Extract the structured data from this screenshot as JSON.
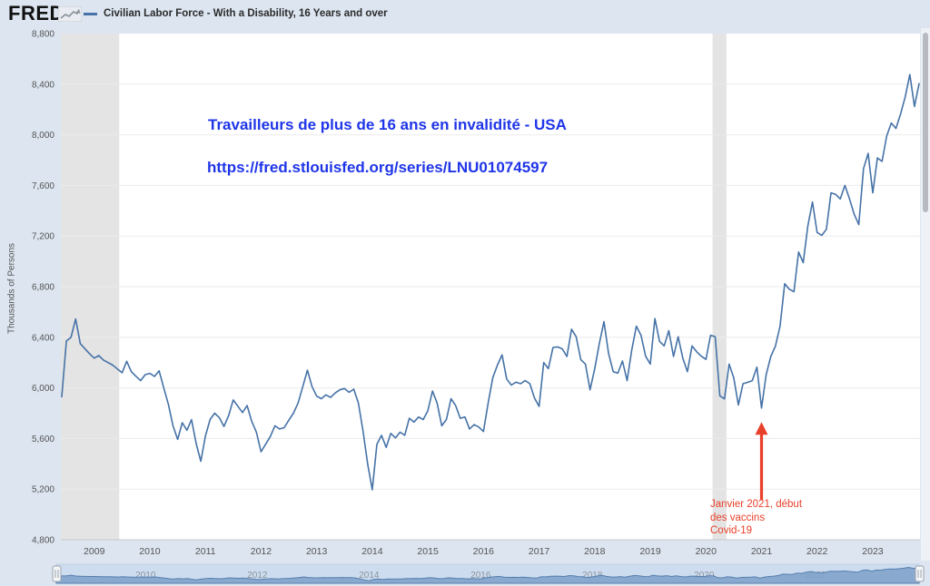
{
  "header": {
    "logo": "FRED",
    "series_legend": "Civilian Labor Force - With a Disability, 16 Years and over"
  },
  "y_axis_title": "Thousands of Persons",
  "annotations": {
    "title": "Travailleurs de plus de 16 ans en invalidité - USA",
    "url": "https://fred.stlouisfed.org/series/LNU01074597",
    "title_color": "#1f35e8",
    "vaccine_note": [
      "Janvier 2021, début",
      "des vaccins",
      "Covid-19"
    ],
    "note_color": "#e8402a",
    "arrow": {
      "x_year": 2021.0,
      "tip_value": 5730,
      "tail_value": 5115
    }
  },
  "chart_data": {
    "type": "line",
    "title": "Civilian Labor Force - With a Disability, 16 Years and over",
    "ylabel": "Thousands of Persons",
    "unit": "Thousands of Persons",
    "frequency": "monthly",
    "start_month": "2008-06",
    "end_month": "2023-11",
    "points_start_decimal_year": 2008.4167,
    "x_range": [
      2008.4,
      2023.85
    ],
    "y_range": [
      4800,
      8800
    ],
    "y_ticks": [
      4800,
      5200,
      5600,
      6000,
      6400,
      6800,
      7200,
      7600,
      8000,
      8400,
      8800
    ],
    "x_ticks": [
      2009,
      2010,
      2011,
      2012,
      2013,
      2014,
      2015,
      2016,
      2017,
      2018,
      2019,
      2020,
      2021,
      2022,
      2023
    ],
    "nav_ticks": [
      2010,
      2012,
      2014,
      2016,
      2018,
      2020,
      2022
    ],
    "recession_bands": [
      [
        2008.4,
        2009.45
      ],
      [
        2020.12,
        2020.37
      ]
    ],
    "grid": true,
    "legend_position": "top",
    "line_color": "#4572a7",
    "band_color": "#e4e4e4",
    "nav_fill_color": "#7fa2cb",
    "nav_line_color": "#567fae",
    "nav_track_color": "#cdddef",
    "values": [
      5930,
      6370,
      6400,
      6545,
      6350,
      6310,
      6270,
      6235,
      6255,
      6220,
      6200,
      6180,
      6150,
      6120,
      6210,
      6128,
      6092,
      6057,
      6105,
      6115,
      6090,
      6135,
      6000,
      5870,
      5700,
      5593,
      5725,
      5665,
      5749,
      5560,
      5420,
      5620,
      5750,
      5800,
      5765,
      5695,
      5780,
      5905,
      5855,
      5805,
      5860,
      5735,
      5650,
      5495,
      5555,
      5615,
      5700,
      5675,
      5685,
      5745,
      5800,
      5880,
      6010,
      6140,
      6010,
      5935,
      5915,
      5945,
      5925,
      5960,
      5985,
      5995,
      5965,
      5990,
      5880,
      5660,
      5400,
      5195,
      5555,
      5625,
      5530,
      5640,
      5605,
      5650,
      5625,
      5760,
      5730,
      5770,
      5750,
      5820,
      5975,
      5880,
      5700,
      5750,
      5915,
      5860,
      5760,
      5770,
      5675,
      5710,
      5690,
      5655,
      5880,
      6081,
      6180,
      6261,
      6070,
      6022,
      6045,
      6033,
      6057,
      6033,
      5920,
      5854,
      6200,
      6152,
      6320,
      6324,
      6308,
      6248,
      6464,
      6404,
      6224,
      6188,
      5985,
      6150,
      6350,
      6524,
      6272,
      6128,
      6116,
      6212,
      6057,
      6300,
      6488,
      6416,
      6250,
      6188,
      6548,
      6368,
      6332,
      6452,
      6248,
      6404,
      6236,
      6128,
      6332,
      6285,
      6250,
      6225,
      6416,
      6404,
      5937,
      5913,
      6188,
      6080,
      5865,
      6033,
      6044,
      6057,
      6164,
      5841,
      6104,
      6248,
      6330,
      6488,
      6823,
      6780,
      6760,
      7074,
      6990,
      7280,
      7469,
      7229,
      7205,
      7253,
      7541,
      7529,
      7493,
      7600,
      7493,
      7373,
      7290,
      7733,
      7853,
      7541,
      7817,
      7790,
      7990,
      8093,
      8050,
      8164,
      8300,
      8476,
      8224,
      8404
    ]
  }
}
